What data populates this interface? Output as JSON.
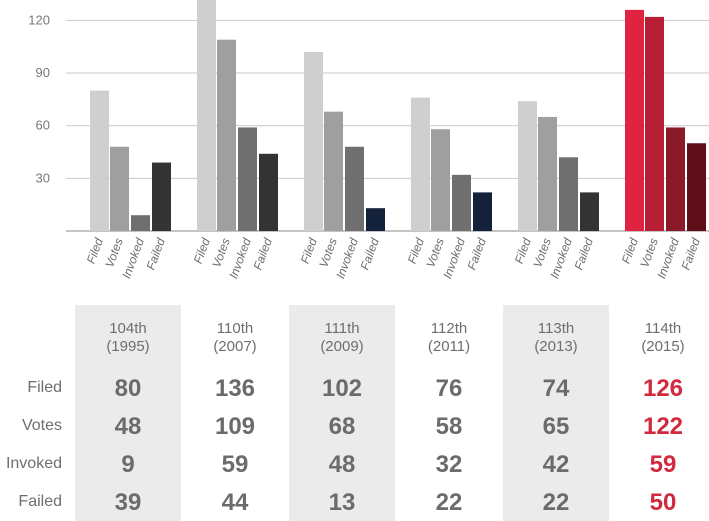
{
  "chart_data": {
    "type": "bar",
    "y_ticks": [
      30,
      60,
      90,
      120
    ],
    "ylim": [
      0,
      136
    ],
    "grid": true,
    "categories": [
      "Filed",
      "Votes",
      "Invoked",
      "Failed"
    ],
    "groups": [
      {
        "label_line1": "104th",
        "label_line2": "(1995)",
        "values": [
          80,
          48,
          9,
          39
        ],
        "highlight": false
      },
      {
        "label_line1": "110th",
        "label_line2": "(2007)",
        "values": [
          136,
          109,
          59,
          44
        ],
        "highlight": false
      },
      {
        "label_line1": "111th",
        "label_line2": "(2009)",
        "values": [
          102,
          68,
          48,
          13
        ],
        "highlight": false
      },
      {
        "label_line1": "112th",
        "label_line2": "(2011)",
        "values": [
          76,
          58,
          32,
          22
        ],
        "highlight": false
      },
      {
        "label_line1": "113th",
        "label_line2": "(2013)",
        "values": [
          74,
          65,
          42,
          22
        ],
        "highlight": false
      },
      {
        "label_line1": "114th",
        "label_line2": "(2015)",
        "values": [
          126,
          122,
          59,
          50
        ],
        "highlight": true
      }
    ],
    "colors": {
      "default": [
        "#cfcfcf",
        "#9f9f9f",
        "#6f6f6f",
        "#333333"
      ],
      "navy_failed": "#14213a",
      "highlight": [
        "#e0243f",
        "#b81f36",
        "#8a1a2a",
        "#5e0f1a"
      ],
      "grid": "#c9c9c9",
      "axis": "#888888"
    }
  },
  "table": {
    "row_labels": [
      "Filed",
      "Votes",
      "Invoked",
      "Failed"
    ]
  }
}
